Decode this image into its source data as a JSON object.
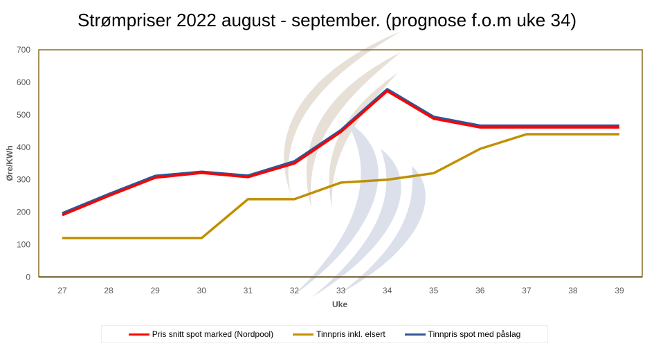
{
  "chart_data": {
    "type": "line",
    "title": "Strømpriser 2022 august - september. (prognose f.o.m uke 34)",
    "xlabel": "Uke",
    "ylabel": "Øre/KWh",
    "x": [
      27,
      28,
      29,
      30,
      31,
      32,
      33,
      34,
      35,
      36,
      37,
      38,
      39
    ],
    "ylim": [
      0,
      700
    ],
    "yticks": [
      0,
      100,
      200,
      300,
      400,
      500,
      600,
      700
    ],
    "grid": false,
    "legend_position": "bottom",
    "series": [
      {
        "name": "Pris snitt spot marked (Nordpool)",
        "color": "#ff0000",
        "values": [
          191,
          250,
          306,
          321,
          308,
          350,
          447,
          573,
          488,
          461,
          461,
          461,
          461
        ]
      },
      {
        "name": "Tinnpris inkl. elsert",
        "color": "#bf9000",
        "values": [
          120,
          120,
          120,
          120,
          240,
          240,
          291,
          300,
          320,
          395,
          440,
          440,
          440
        ]
      },
      {
        "name": "Tinnpris spot med påslag",
        "color": "#2f5597",
        "values": [
          196,
          255,
          311,
          324,
          312,
          356,
          452,
          578,
          493,
          466,
          466,
          466,
          466
        ]
      }
    ]
  }
}
